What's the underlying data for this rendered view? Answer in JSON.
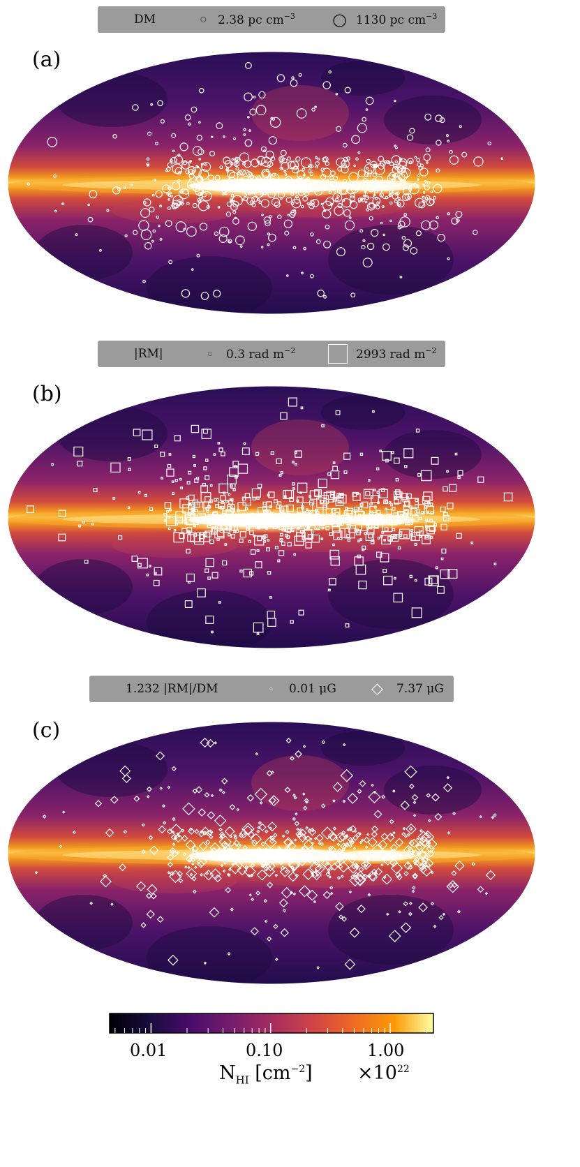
{
  "chart_data": [
    {
      "type": "scatter",
      "panel_label": "(a)",
      "legend": {
        "quantity": "DM",
        "min_label": "2.38 pc cm",
        "min_exp": "−3",
        "max_label": "1130 pc cm",
        "max_exp": "−3"
      },
      "marker": "circle"
    },
    {
      "type": "scatter",
      "panel_label": "(b)",
      "legend": {
        "quantity": "|RM|",
        "min_label": "0.3 rad m",
        "min_exp": "−2",
        "max_label": "2993 rad m",
        "max_exp": "−2"
      },
      "marker": "square"
    },
    {
      "type": "scatter",
      "panel_label": "(c)",
      "legend": {
        "quantity": "1.232 |RM|/DM",
        "min_label": "0.01 μG",
        "max_label": "7.37 μG"
      },
      "marker": "diamond"
    }
  ],
  "colorbar": {
    "scale": "log",
    "ticks": [
      0.01,
      0.1,
      1.0
    ],
    "tick_labels": [
      "0.01",
      "0.10",
      "1.00"
    ],
    "label": "N",
    "label_sub": "HI",
    "label_unit": "[cm",
    "label_unit_exp": "−2",
    "label_unit_close": "]",
    "multiplier": "×10",
    "multiplier_exp": "22",
    "colormap": "inferno"
  }
}
